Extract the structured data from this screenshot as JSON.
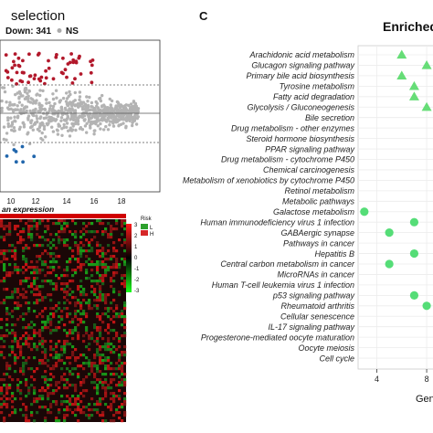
{
  "left_panel": {
    "title_fragment": "selection",
    "legend_down": "Down: 341",
    "legend_ns": "NS",
    "x_ticks": [
      "10",
      "12",
      "14",
      "16",
      "18"
    ],
    "x_label_fragment": "an expression",
    "risk_legend": {
      "title": "Risk",
      "items": [
        {
          "label": "L",
          "color": "#2ca02c"
        },
        {
          "label": "H",
          "color": "#d62728"
        }
      ]
    },
    "heatmap_scale": [
      "3",
      "2",
      "1",
      "0",
      "-1",
      "-2",
      "-3"
    ]
  },
  "right_panel": {
    "panel_letter": "C",
    "title_fragment": "Enriched",
    "x_label_fragment": "Gen",
    "chart_data": {
      "type": "scatter",
      "x_ticks": [
        4,
        8
      ],
      "xlim": [
        2.5,
        8.8
      ],
      "categories": [
        "Arachidonic acid metabolism",
        "Glucagon signaling pathway",
        "Primary bile acid biosynthesis",
        "Tyrosine metabolism",
        "Fatty acid degradation",
        "Glycolysis / Gluconeogenesis",
        "Bile secretion",
        "Drug metabolism - other enzymes",
        "Steroid hormone biosynthesis",
        "PPAR signaling pathway",
        "Drug metabolism - cytochrome P450",
        "Chemical carcinogenesis",
        "Metabolism of xenobiotics by cytochrome P450",
        "Retinol metabolism",
        "Metabolic pathways",
        "Galactose metabolism",
        "Human immunodeficiency virus 1 infection",
        "GABAergic synapse",
        "Pathways in cancer",
        "Hepatitis B",
        "Central carbon metabolism in cancer",
        "MicroRNAs in cancer",
        "Human T-cell leukemia virus 1 infection",
        "p53 signaling pathway",
        "Rheumatoid arthritis",
        "Cellular senescence",
        "IL-17 signaling pathway",
        "Progesterone-mediated oocyte maturation",
        "Oocyte meiosis",
        "Cell cycle"
      ],
      "series": [
        {
          "marker": "triangle",
          "color": "#66dd77",
          "points": [
            {
              "category": "Arachidonic acid metabolism",
              "x": 6
            },
            {
              "category": "Glucagon signaling pathway",
              "x": 8
            },
            {
              "category": "Primary bile acid biosynthesis",
              "x": 6
            },
            {
              "category": "Tyrosine metabolism",
              "x": 7
            },
            {
              "category": "Fatty acid degradation",
              "x": 7
            },
            {
              "category": "Glycolysis / Gluconeogenesis",
              "x": 8
            }
          ]
        },
        {
          "marker": "circle",
          "color": "#55dd77",
          "points": [
            {
              "category": "Galactose metabolism",
              "x": 3
            },
            {
              "category": "Human immunodeficiency virus 1 infection",
              "x": 7
            },
            {
              "category": "GABAergic synapse",
              "x": 5
            },
            {
              "category": "Hepatitis B",
              "x": 7
            },
            {
              "category": "Central carbon metabolism in cancer",
              "x": 5
            },
            {
              "category": "p53 signaling pathway",
              "x": 7
            },
            {
              "category": "Rheumatoid arthritis",
              "x": 8
            }
          ]
        }
      ]
    }
  }
}
